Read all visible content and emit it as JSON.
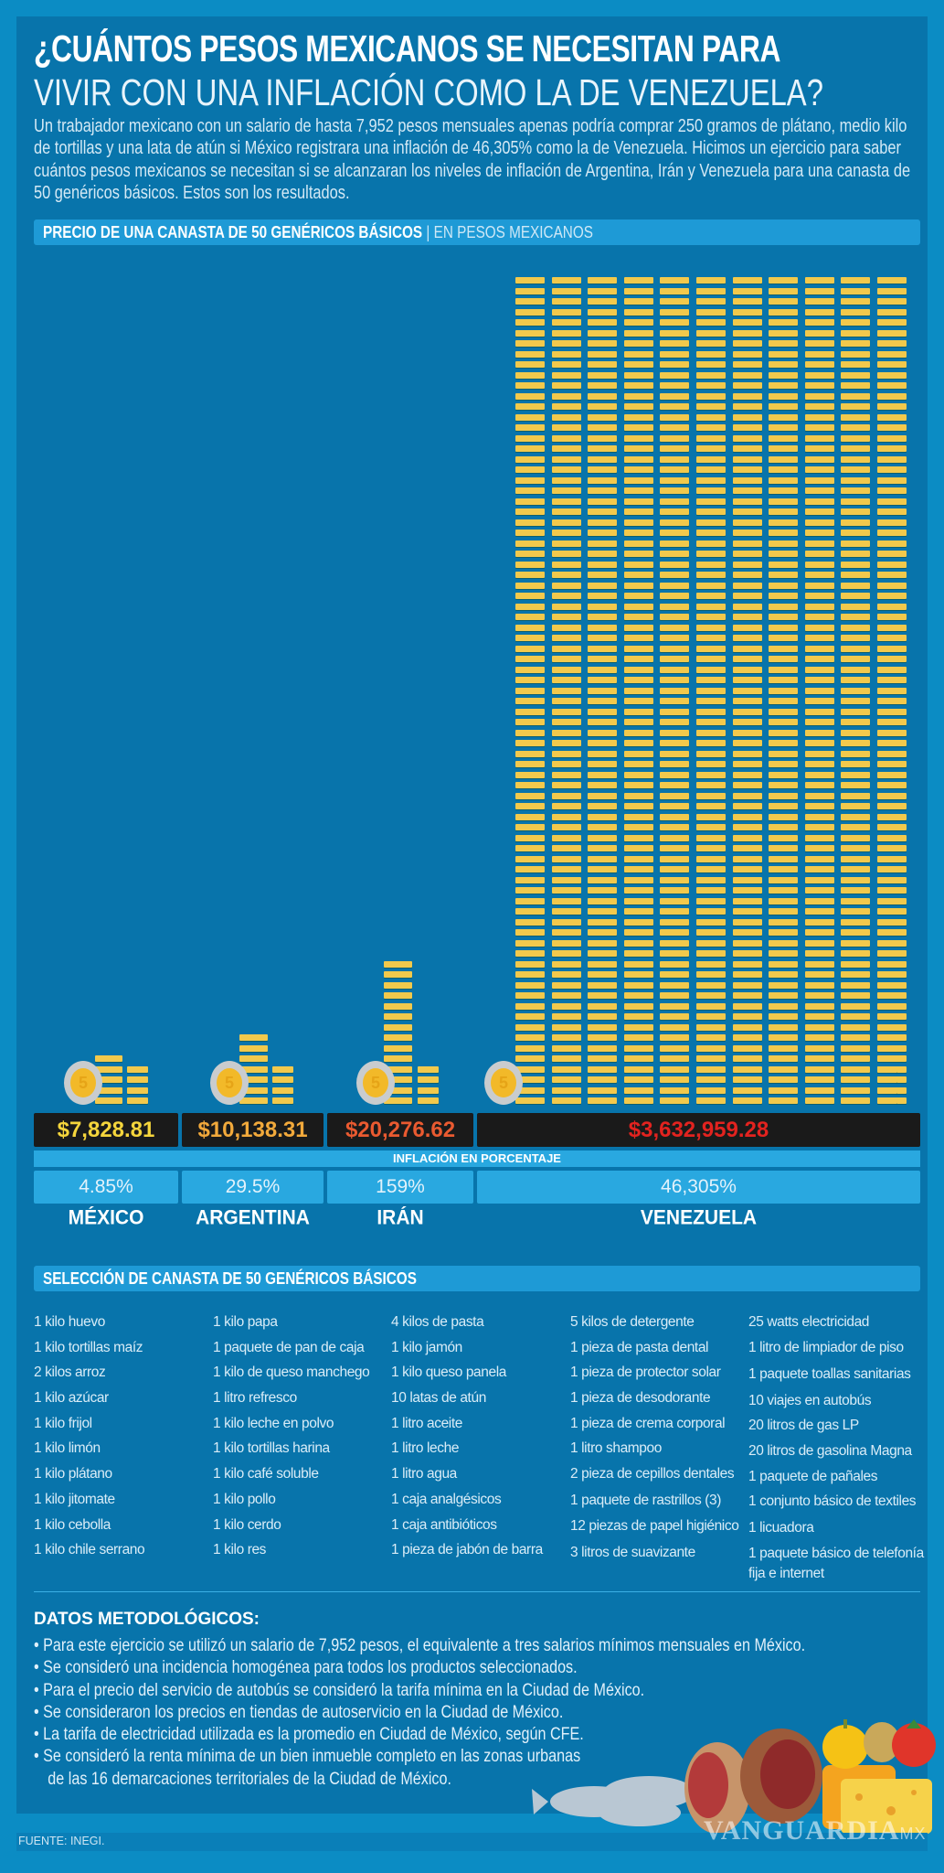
{
  "title": {
    "line1": "¿CUÁNTOS PESOS MEXICANOS SE NECESITAN PARA",
    "line2": "VIVIR CON UNA INFLACIÓN COMO LA DE VENEZUELA?"
  },
  "intro": "Un trabajador mexicano con un salario de hasta 7,952 pesos mensuales apenas podría comprar 250 gramos de plátano, medio kilo de tortillas y una lata de atún si México registrara una inflación de 46,305% como la de Venezuela. Hicimos un ejercicio para saber cuántos pesos mexicanos se necesitan si se alcanzaran los niveles de inflación de Argentina, Irán y Venezuela para una canasta de 50 genéricos básicos. Estos son los resultados.",
  "chart_section": {
    "title": "PRECIO DE UNA CANASTA DE 50 GENÉRICOS BÁSICOS",
    "separator": "|",
    "unit": "EN PESOS MEXICANOS"
  },
  "chart_data": {
    "type": "bar",
    "title": "PRECIO DE UNA CANASTA DE 50 GENÉRICOS BÁSICOS | EN PESOS MEXICANOS",
    "categories": [
      "MÉXICO",
      "ARGENTINA",
      "IRÁN",
      "VENEZUELA"
    ],
    "values": [
      7828.81,
      10138.31,
      20276.62,
      3632959.28
    ],
    "value_labels": [
      "$7,828.81",
      "$10,138.31",
      "$20,276.62",
      "$3,632,959.28"
    ],
    "value_colors": [
      "#f5d53c",
      "#f2a93b",
      "#ea5a30",
      "#e3231f"
    ],
    "inflation_title": "INFLACIÓN EN PORCENTAJE",
    "inflation": [
      "4.85%",
      "29.5%",
      "159%",
      "46,305%"
    ],
    "coin_label": "5",
    "coin_color": "#f2c94c"
  },
  "basket": {
    "title": "SELECCIÓN DE CANASTA DE 50 GENÉRICOS BÁSICOS",
    "columns": [
      [
        "1 kilo huevo",
        "1 kilo tortillas maíz",
        "2 kilos arroz",
        "1 kilo azúcar",
        "1 kilo frijol",
        "1 kilo limón",
        "1 kilo plátano",
        "1 kilo jitomate",
        "1 kilo cebolla",
        "1 kilo chile serrano"
      ],
      [
        "1 kilo papa",
        "1 paquete de pan de caja",
        "1 kilo de queso manchego",
        "1 litro refresco",
        "1 kilo leche en polvo",
        "1 kilo tortillas harina",
        "1 kilo café soluble",
        "1 kilo pollo",
        "1 kilo cerdo",
        "1 kilo res"
      ],
      [
        "4 kilos de pasta",
        "1 kilo jamón",
        "1 kilo queso panela",
        "10 latas de atún",
        "1 litro aceite",
        "1 litro leche",
        "1 litro agua",
        "1 caja analgésicos",
        "1 caja antibióticos",
        "1 pieza de jabón de barra"
      ],
      [
        "5 kilos de detergente",
        "1 pieza de pasta dental",
        "1 pieza de protector solar",
        "1 pieza de desodorante",
        "1 pieza de crema corporal",
        "1 litro shampoo",
        "2 pieza de cepillos dentales",
        "1 paquete de rastrillos (3)",
        "12 piezas de papel higiénico",
        "3 litros de suavizante"
      ],
      [
        "25 watts electricidad",
        "1 litro de limpiador de piso",
        "1 paquete toallas sanitarias",
        "10 viajes en autobús",
        "20 litros de gas LP",
        "20 litros de gasolina Magna",
        "1 paquete de pañales",
        "1 conjunto básico de textiles",
        "1 licuadora",
        "1 paquete básico de telefonía fija e internet"
      ]
    ]
  },
  "methodology": {
    "title": "DATOS METODOLÓGICOS:",
    "bullets": [
      "• Para este ejercicio se utilizó un salario de 7,952 pesos, el equivalente a tres salarios mínimos mensuales en México.",
      "• Se consideró una incidencia homogénea para todos los productos seleccionados.",
      "• Para el precio del servicio de autobús se consideró la tarifa mínima en la Ciudad de México.",
      "• Se consideraron los precios en tiendas de autoservicio en la Ciudad de México.",
      "• La tarifa de electricidad utilizada es la promedio en Ciudad de México, según CFE.",
      "• Se consideró la renta mínima de un bien inmueble completo en las zonas urbanas",
      "   de las 16 demarcaciones territoriales de la Ciudad de México."
    ]
  },
  "source": "FUENTE: INEGI.",
  "watermark": {
    "brand": "VANGUARDIA",
    "suffix": "MX"
  },
  "colors": {
    "background": "#0b8cc4",
    "panel": "#0874ab",
    "bar": "#1e9ad6",
    "price_bg": "#1a1a1a"
  }
}
